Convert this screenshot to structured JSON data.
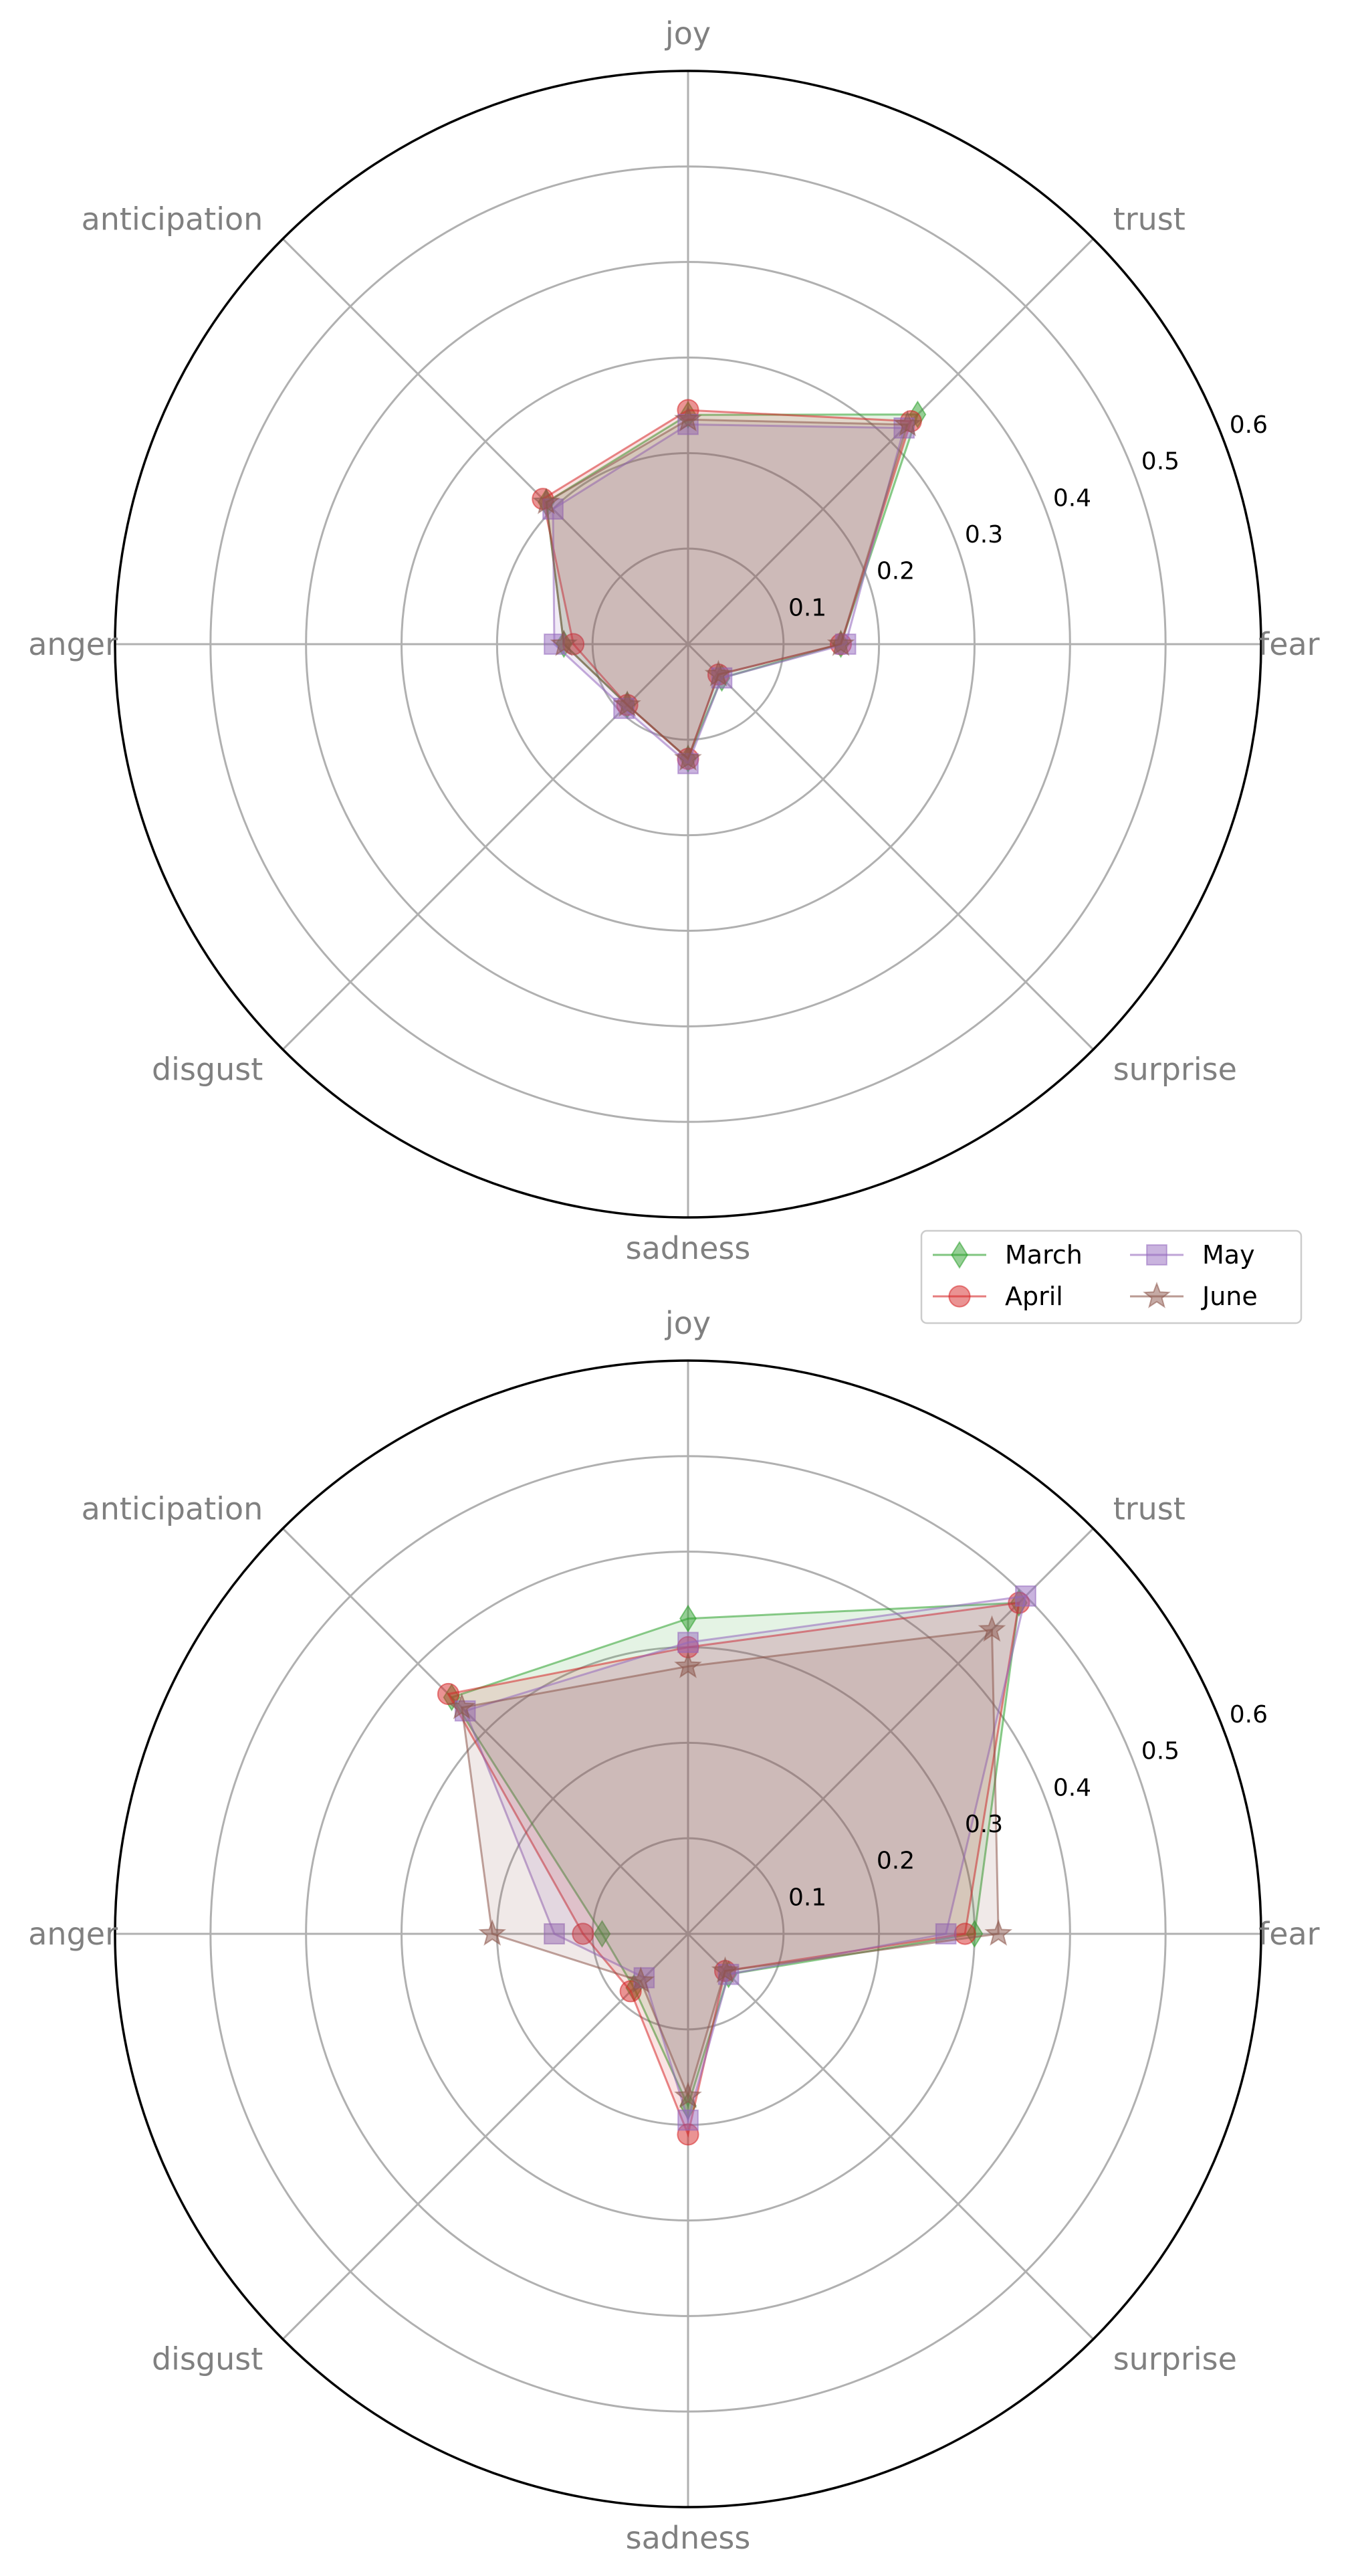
{
  "chart_data": [
    {
      "type": "radar",
      "categories": [
        "fear",
        "trust",
        "joy",
        "anticipation",
        "anger",
        "disgust",
        "sadness",
        "surprise"
      ],
      "rlim": [
        0,
        0.6
      ],
      "rticks": [
        0.1,
        0.2,
        0.3,
        0.4,
        0.5,
        0.6
      ],
      "rtick_labels": [
        "0.1",
        "0.2",
        "0.3",
        "0.4",
        "0.5",
        "0.6"
      ],
      "grid": true,
      "series": [
        {
          "name": "March",
          "values": [
            0.16,
            0.34,
            0.24,
            0.21,
            0.13,
            0.09,
            0.12,
            0.05
          ]
        },
        {
          "name": "April",
          "values": [
            0.16,
            0.33,
            0.245,
            0.215,
            0.12,
            0.09,
            0.12,
            0.045
          ]
        },
        {
          "name": "May",
          "values": [
            0.165,
            0.32,
            0.23,
            0.2,
            0.14,
            0.095,
            0.125,
            0.05
          ]
        },
        {
          "name": "June",
          "values": [
            0.16,
            0.325,
            0.235,
            0.21,
            0.13,
            0.09,
            0.12,
            0.045
          ]
        }
      ]
    },
    {
      "type": "radar",
      "categories": [
        "fear",
        "trust",
        "joy",
        "anticipation",
        "anger",
        "disgust",
        "sadness",
        "surprise"
      ],
      "rlim": [
        0,
        0.6
      ],
      "rticks": [
        0.1,
        0.2,
        0.3,
        0.4,
        0.5,
        0.6
      ],
      "rtick_labels": [
        "0.1",
        "0.2",
        "0.3",
        "0.4",
        "0.5",
        "0.6"
      ],
      "grid": true,
      "legend": {
        "placement": "top-right",
        "columns": 2
      },
      "series": [
        {
          "name": "March",
          "values": [
            0.3,
            0.49,
            0.33,
            0.35,
            0.09,
            0.08,
            0.18,
            0.06
          ]
        },
        {
          "name": "April",
          "values": [
            0.29,
            0.49,
            0.3,
            0.355,
            0.11,
            0.085,
            0.21,
            0.055
          ]
        },
        {
          "name": "May",
          "values": [
            0.27,
            0.5,
            0.305,
            0.33,
            0.14,
            0.065,
            0.195,
            0.06
          ]
        },
        {
          "name": "June",
          "values": [
            0.325,
            0.45,
            0.28,
            0.335,
            0.205,
            0.07,
            0.17,
            0.055
          ]
        }
      ]
    }
  ],
  "series_styles": [
    {
      "name": "March",
      "color": "#2ca02c",
      "marker": "diamond"
    },
    {
      "name": "April",
      "color": "#d62728",
      "marker": "circle"
    },
    {
      "name": "May",
      "color": "#9467bd",
      "marker": "square"
    },
    {
      "name": "June",
      "color": "#8c564b",
      "marker": "star"
    }
  ],
  "grid_color": "#b0b0b0",
  "label_color": "#808080"
}
